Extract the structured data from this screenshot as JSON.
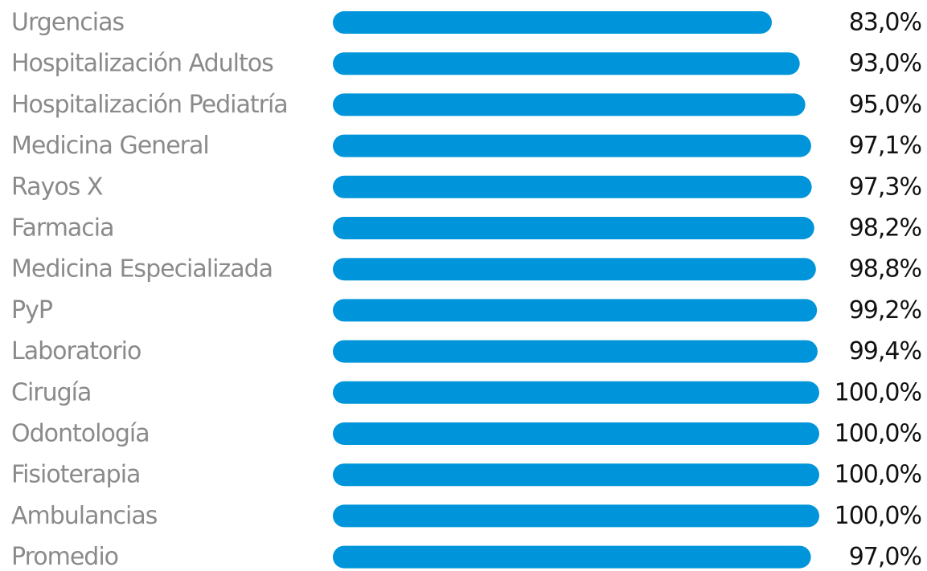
{
  "chart_data": {
    "type": "bar",
    "orientation": "horizontal",
    "title": "",
    "xlabel": "",
    "ylabel": "",
    "bar_color": "#0095DA",
    "categories": [
      "Urgencias",
      "Hospitalización Adultos",
      "Hospitalización Pediatría",
      "Medicina General",
      "Rayos X",
      "Farmacia",
      "Medicina Especializada",
      "PyP",
      "Laboratorio",
      "Cirugía",
      "Odontología",
      "Fisioterapia",
      "Ambulancias",
      "Promedio"
    ],
    "values": [
      83.0,
      93.0,
      95.0,
      97.1,
      97.3,
      98.2,
      98.8,
      99.2,
      99.4,
      100.0,
      100.0,
      100.0,
      100.0,
      97.0
    ],
    "value_labels": [
      "83,0%",
      "93,0%",
      "95,0%",
      "97,1%",
      "97,3%",
      "98,2%",
      "98,8%",
      "99,2%",
      "99,4%",
      "100,0%",
      "100,0%",
      "100,0%",
      "100,0%",
      "97,0%"
    ]
  }
}
